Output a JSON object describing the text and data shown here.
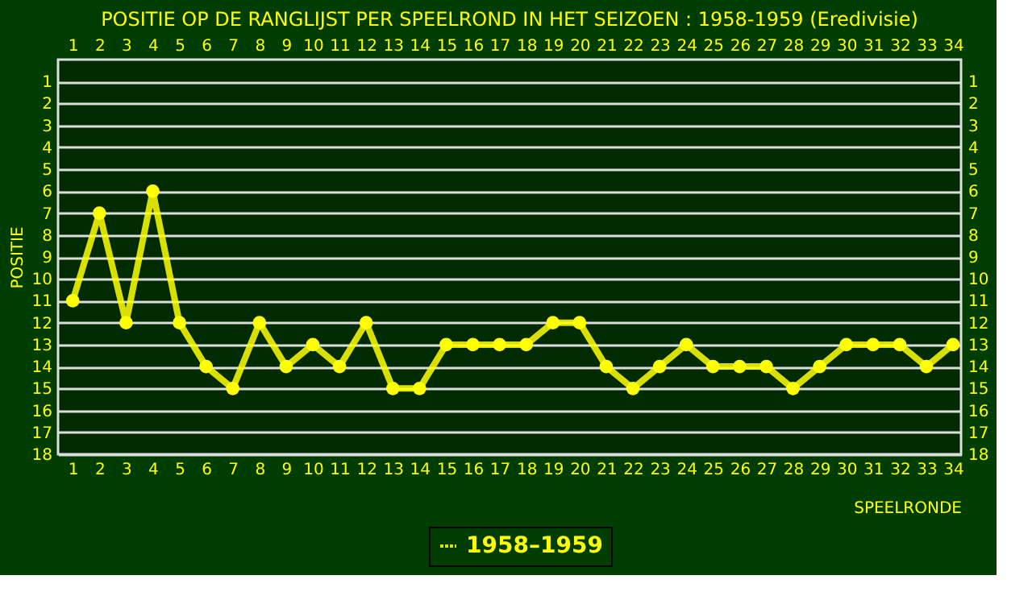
{
  "chart_data": {
    "type": "line",
    "title": "POSITIE OP DE RANGLIJST PER  SPEELROND IN HET SEIZOEN : 1958-1959 (Eredivisie)",
    "xlabel": "SPEELRONDE",
    "ylabel": "POSITIE",
    "x": [
      1,
      2,
      3,
      4,
      5,
      6,
      7,
      8,
      9,
      10,
      11,
      12,
      13,
      14,
      15,
      16,
      17,
      18,
      19,
      20,
      21,
      22,
      23,
      24,
      25,
      26,
      27,
      28,
      29,
      30,
      31,
      32,
      33,
      34
    ],
    "series": [
      {
        "name": "1958–1959",
        "color": "#ffff00",
        "values": [
          11,
          7,
          12,
          6,
          12,
          14,
          15,
          12,
          14,
          13,
          14,
          12,
          15,
          15,
          13,
          13,
          13,
          13,
          12,
          12,
          14,
          15,
          14,
          13,
          14,
          14,
          14,
          15,
          14,
          13,
          13,
          13,
          14,
          13
        ]
      }
    ],
    "xlim": [
      0.45,
      34.3
    ],
    "xticks": [
      1,
      2,
      3,
      4,
      5,
      6,
      7,
      8,
      9,
      10,
      11,
      12,
      13,
      14,
      15,
      16,
      17,
      18,
      19,
      20,
      21,
      22,
      23,
      24,
      25,
      26,
      27,
      28,
      29,
      30,
      31,
      32,
      33,
      34
    ],
    "x2lim": [
      0.45,
      34.3
    ],
    "x2ticks": [
      1,
      2,
      3,
      4,
      5,
      6,
      7,
      8,
      9,
      10,
      11,
      12,
      13,
      14,
      15,
      16,
      17,
      18,
      19,
      20,
      21,
      22,
      23,
      24,
      25,
      26,
      27,
      28,
      29,
      30,
      31,
      32,
      33,
      34
    ],
    "ylim": [
      18,
      0
    ],
    "yticks": [
      1,
      2,
      3,
      4,
      5,
      6,
      7,
      8,
      9,
      10,
      11,
      12,
      13,
      14,
      15,
      16,
      17,
      18
    ],
    "y2lim": [
      18,
      0
    ],
    "y2ticks": [
      1,
      2,
      3,
      4,
      5,
      6,
      7,
      8,
      9,
      10,
      11,
      12,
      13,
      14,
      15,
      16,
      17,
      18
    ],
    "grid": "y",
    "legend": "bottom",
    "marker": "circle",
    "line_style": "solid"
  }
}
